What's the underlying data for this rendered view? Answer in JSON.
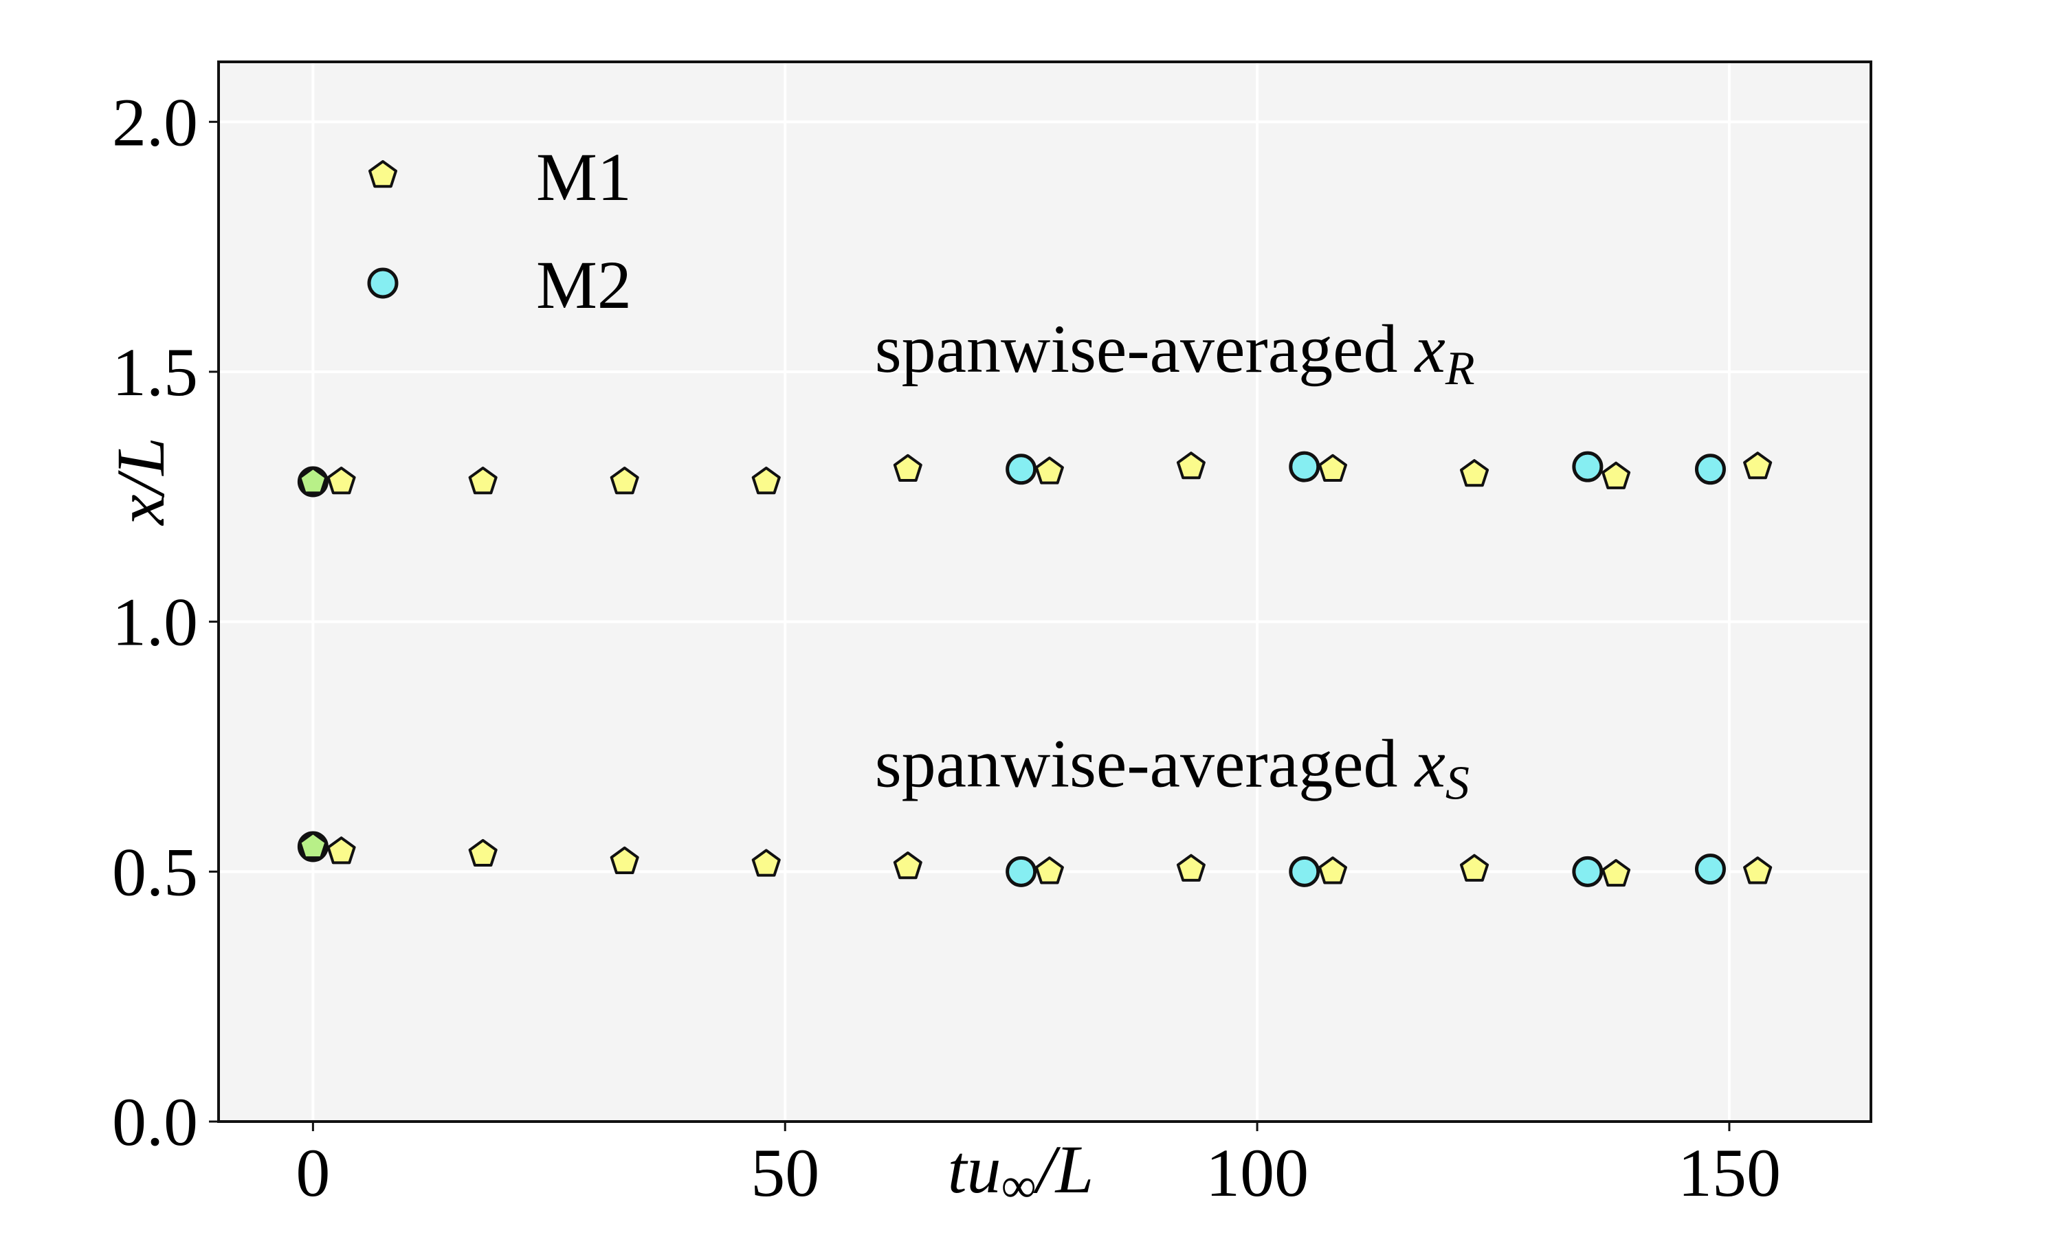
{
  "chart_data": {
    "type": "scatter",
    "title": "",
    "xlabel": {
      "t": "tu",
      "sub": "∞",
      "rest": "/L"
    },
    "ylabel": {
      "v": "x",
      "rest": "/L"
    },
    "xlim": [
      -10,
      165
    ],
    "ylim": [
      0.0,
      2.12
    ],
    "xticks": [
      0,
      50,
      100,
      150
    ],
    "xtick_labels": [
      "0",
      "50",
      "100",
      "150"
    ],
    "yticks": [
      0.0,
      0.5,
      1.0,
      1.5,
      2.0
    ],
    "ytick_labels": [
      "0.0",
      "0.5",
      "1.0",
      "1.5",
      "2.0"
    ],
    "grid": true,
    "legend_position": "top-left",
    "colors": {
      "plot_bg": "#f4f4f4",
      "grid": "#ffffff",
      "m1_fill": "#fbfb8c",
      "m2_fill": "#86eef2",
      "overlap_fill": "#b8f088",
      "edge": "#111111"
    },
    "annotations": [
      {
        "text": "spanwise-averaged ",
        "var": "x",
        "sub": "R",
        "anchor": "xR"
      },
      {
        "text": "spanwise-averaged ",
        "var": "x",
        "sub": "S",
        "anchor": "xS"
      }
    ],
    "series": [
      {
        "name": "M1",
        "marker": "pentagon",
        "x": [
          0,
          3,
          18,
          33,
          48,
          63,
          78,
          93,
          108,
          123,
          138,
          153
        ],
        "xR": [
          1.28,
          1.28,
          1.28,
          1.28,
          1.28,
          1.305,
          1.3,
          1.31,
          1.305,
          1.295,
          1.29,
          1.31
        ],
        "xS": [
          0.55,
          0.54,
          0.535,
          0.52,
          0.515,
          0.51,
          0.5,
          0.505,
          0.5,
          0.505,
          0.495,
          0.5
        ]
      },
      {
        "name": "M2",
        "marker": "circle",
        "x": [
          0,
          75,
          105,
          135,
          148
        ],
        "xR": [
          1.28,
          1.305,
          1.31,
          1.31,
          1.305
        ],
        "xS": [
          0.55,
          0.5,
          0.5,
          0.5,
          0.505
        ]
      }
    ]
  }
}
